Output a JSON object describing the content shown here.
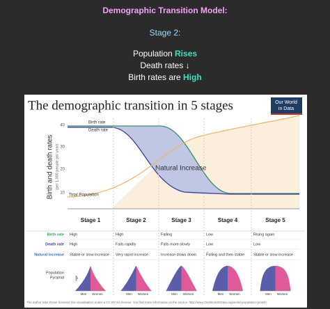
{
  "header": {
    "title": "Demographic Transition Model:",
    "stage": "Stage 2:",
    "lines": [
      {
        "text": "Population",
        "highlight": "Rises"
      },
      {
        "text": "Death rates ↓"
      },
      {
        "text": "Birth rates are",
        "highlight": "High"
      }
    ]
  },
  "figure": {
    "title": "The demographic transition in 5 stages",
    "logo": [
      "Our World",
      "in Data"
    ],
    "y_axis_label": "Birth and death rates",
    "y_axis_sublabel": "(per 1,000 people per year)",
    "yticks": [
      40,
      30,
      20,
      10
    ],
    "annotations": {
      "birth_rate": "Birth rate",
      "death_rate": "Death rate",
      "natural_increase": "Natural Increase",
      "total_population": "Total Population"
    },
    "stages": [
      "Stage 1",
      "Stage 2",
      "Stage 3",
      "Stage 4",
      "Stage 5"
    ],
    "rows": [
      {
        "label": "Birth rate",
        "cells": [
          "High",
          "High",
          "Falling",
          "Low",
          "Rising again"
        ]
      },
      {
        "label": "Death rate",
        "cells": [
          "High",
          "Falls rapidly",
          "Falls more slowly",
          "Low",
          "Low"
        ]
      },
      {
        "label": "Natural increase",
        "cells": [
          "Stable or slow increase",
          "Very rapid increase",
          "Increase slows down",
          "Falling and then stable",
          "Stable or slow increase"
        ]
      }
    ],
    "pyramid_label": [
      "Population",
      "Pyramid"
    ],
    "age_label": "Age",
    "men": "Men",
    "women": "Women",
    "footer": "The author Max Roser licensed this visualisation under a CC BY-SA license. You find more information at the source: http://www.OurWorldInData.org/world-population-growth"
  }
}
